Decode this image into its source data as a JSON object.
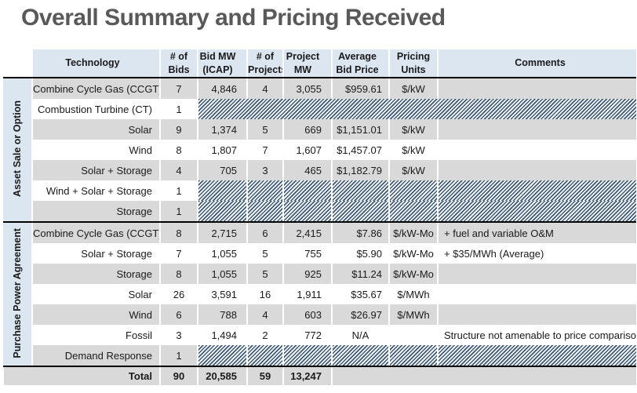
{
  "title": "Overall Summary and Pricing Received",
  "colors": {
    "header-blue": "#dce6f1",
    "row-gray": "#d9d9d9",
    "row-white": "#ffffff",
    "hatch-dark": "#3f5a75",
    "title-gray": "#595959",
    "line-black": "#000000"
  },
  "table": {
    "columns": [
      {
        "key": "technology",
        "label": "Technology"
      },
      {
        "key": "bids",
        "label": "# of Bids"
      },
      {
        "key": "bid_mw",
        "label": "Bid MW (ICAP)"
      },
      {
        "key": "projects",
        "label": "# of Projects"
      },
      {
        "key": "project_mw",
        "label": "Project MW"
      },
      {
        "key": "avg_price",
        "label": "Average Bid Price"
      },
      {
        "key": "units",
        "label": "Pricing Units"
      },
      {
        "key": "comments",
        "label": "Comments"
      }
    ],
    "groups": [
      {
        "label": "Asset Sale or Option",
        "rows": [
          {
            "technology": "Combine Cycle Gas (CCGT)",
            "bids": "7",
            "bid_mw": "4,846",
            "projects": "4",
            "project_mw": "3,055",
            "avg_price": "$959.61",
            "units": "$/kW",
            "comments": ""
          },
          {
            "technology": "Combustion Turbine (CT)",
            "bids": "1",
            "hatched": true,
            "merged": true
          },
          {
            "technology": "Solar",
            "bids": "9",
            "bid_mw": "1,374",
            "projects": "5",
            "project_mw": "669",
            "avg_price": "$1,151.01",
            "units": "$/kW",
            "comments": ""
          },
          {
            "technology": "Wind",
            "bids": "8",
            "bid_mw": "1,807",
            "projects": "7",
            "project_mw": "1,607",
            "avg_price": "$1,457.07",
            "units": "$/kW",
            "comments": ""
          },
          {
            "technology": "Solar + Storage",
            "bids": "4",
            "bid_mw": "705",
            "projects": "3",
            "project_mw": "465",
            "avg_price": "$1,182.79",
            "units": "$/kW",
            "comments": ""
          },
          {
            "technology": "Wind + Solar + Storage",
            "bids": "1",
            "hatched": true
          },
          {
            "technology": "Storage",
            "bids": "1",
            "hatched": true
          }
        ]
      },
      {
        "label": "Purchase Power Agreement",
        "rows": [
          {
            "technology": "Combine Cycle Gas (CCGT)",
            "bids": "8",
            "bid_mw": "2,715",
            "projects": "6",
            "project_mw": "2,415",
            "avg_price": "$7.86",
            "units": "$/kW-Mo",
            "comments": "+ fuel and variable O&M"
          },
          {
            "technology": "Solar + Storage",
            "bids": "7",
            "bid_mw": "1,055",
            "projects": "5",
            "project_mw": "755",
            "avg_price": "$5.90",
            "units": "$/kW-Mo",
            "comments": "+ $35/MWh (Average)"
          },
          {
            "technology": "Storage",
            "bids": "8",
            "bid_mw": "1,055",
            "projects": "5",
            "project_mw": "925",
            "avg_price": "$11.24",
            "units": "$/kW-Mo",
            "comments": ""
          },
          {
            "technology": "Solar",
            "bids": "26",
            "bid_mw": "3,591",
            "projects": "16",
            "project_mw": "1,911",
            "avg_price": "$35.67",
            "units": "$/MWh",
            "comments": ""
          },
          {
            "technology": "Wind",
            "bids": "6",
            "bid_mw": "788",
            "projects": "4",
            "project_mw": "603",
            "avg_price": "$26.97",
            "units": "$/MWh",
            "comments": ""
          },
          {
            "technology": "Fossil",
            "bids": "3",
            "bid_mw": "1,494",
            "projects": "2",
            "project_mw": "772",
            "avg_price": "N/A",
            "units": "",
            "comments": "Structure not amenable to price comparison"
          },
          {
            "technology": "Demand Response",
            "bids": "1",
            "hatched": true
          }
        ]
      }
    ],
    "total": {
      "label": "Total",
      "bids": "90",
      "bid_mw": "20,585",
      "projects": "59",
      "project_mw": "13,247"
    }
  }
}
